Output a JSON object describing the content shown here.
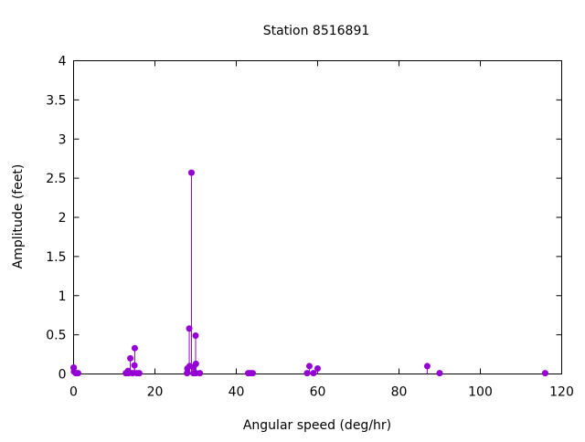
{
  "chart_data": {
    "type": "scatter",
    "style": "impulses with points",
    "title": "Station 8516891",
    "xlabel": "Angular speed (deg/hr)",
    "ylabel": "Amplitude (feet)",
    "xlim": [
      0,
      120
    ],
    "ylim": [
      0,
      4
    ],
    "xticks": [
      "0",
      "20",
      "40",
      "60",
      "80",
      "100",
      "120"
    ],
    "yticks": [
      "0",
      "0.5",
      "1",
      "1.5",
      "2",
      "2.5",
      "3",
      "3.5",
      "4"
    ],
    "grid": false,
    "color": "#9400d3",
    "points": [
      {
        "x": 0.0,
        "y": 0.08
      },
      {
        "x": 0.04,
        "y": 0.08
      },
      {
        "x": 0.08,
        "y": 0.03
      },
      {
        "x": 0.54,
        "y": 0.01
      },
      {
        "x": 1.1,
        "y": 0.01
      },
      {
        "x": 12.85,
        "y": 0.01
      },
      {
        "x": 13.4,
        "y": 0.04
      },
      {
        "x": 13.47,
        "y": 0.01
      },
      {
        "x": 13.94,
        "y": 0.2
      },
      {
        "x": 14.5,
        "y": 0.01
      },
      {
        "x": 14.96,
        "y": 0.11
      },
      {
        "x": 15.04,
        "y": 0.33
      },
      {
        "x": 15.59,
        "y": 0.01
      },
      {
        "x": 16.14,
        "y": 0.01
      },
      {
        "x": 27.9,
        "y": 0.01
      },
      {
        "x": 27.97,
        "y": 0.07
      },
      {
        "x": 28.44,
        "y": 0.58
      },
      {
        "x": 28.51,
        "y": 0.1
      },
      {
        "x": 28.98,
        "y": 2.57
      },
      {
        "x": 29.46,
        "y": 0.01
      },
      {
        "x": 29.53,
        "y": 0.09
      },
      {
        "x": 29.96,
        "y": 0.01
      },
      {
        "x": 30.0,
        "y": 0.49
      },
      {
        "x": 30.04,
        "y": 0.01
      },
      {
        "x": 30.08,
        "y": 0.13
      },
      {
        "x": 31.02,
        "y": 0.01
      },
      {
        "x": 42.93,
        "y": 0.01
      },
      {
        "x": 43.48,
        "y": 0.01
      },
      {
        "x": 44.03,
        "y": 0.01
      },
      {
        "x": 57.42,
        "y": 0.01
      },
      {
        "x": 57.97,
        "y": 0.1
      },
      {
        "x": 58.98,
        "y": 0.01
      },
      {
        "x": 60.0,
        "y": 0.07
      },
      {
        "x": 86.95,
        "y": 0.1
      },
      {
        "x": 90.0,
        "y": 0.01
      },
      {
        "x": 115.94,
        "y": 0.01
      }
    ]
  }
}
